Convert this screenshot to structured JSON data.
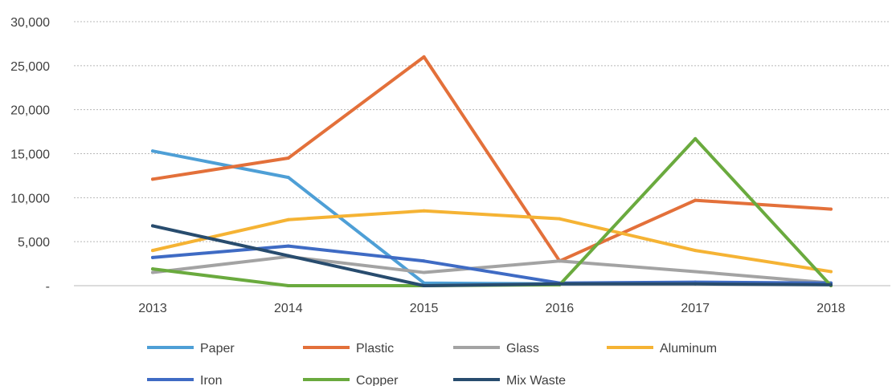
{
  "chart_data": {
    "type": "line",
    "title": "",
    "xlabel": "",
    "ylabel": "",
    "categories": [
      "2013",
      "2014",
      "2015",
      "2016",
      "2017",
      "2018"
    ],
    "ylim": [
      0,
      30000
    ],
    "y_ticks": [
      {
        "value": 0,
        "label": "-"
      },
      {
        "value": 5000,
        "label": "5,000"
      },
      {
        "value": 10000,
        "label": "10,000"
      },
      {
        "value": 15000,
        "label": "15,000"
      },
      {
        "value": 20000,
        "label": "20,000"
      },
      {
        "value": 25000,
        "label": "25,000"
      },
      {
        "value": 30000,
        "label": "30,000"
      }
    ],
    "grid": "horizontal dotted",
    "legend_position": "bottom",
    "series": [
      {
        "name": "Paper",
        "color": "#4e9fd6",
        "values": [
          15300,
          12300,
          300,
          200,
          300,
          200
        ]
      },
      {
        "name": "Plastic",
        "color": "#e3703a",
        "values": [
          12100,
          14500,
          26000,
          2800,
          9700,
          8700
        ]
      },
      {
        "name": "Glass",
        "color": "#a3a3a3",
        "values": [
          1500,
          3300,
          1500,
          2800,
          1600,
          300
        ]
      },
      {
        "name": "Aluminum",
        "color": "#f5b334",
        "values": [
          4000,
          7500,
          8500,
          7600,
          4000,
          1600
        ]
      },
      {
        "name": "Iron",
        "color": "#3f6bc4",
        "values": [
          3200,
          4500,
          2800,
          300,
          400,
          300
        ]
      },
      {
        "name": "Copper",
        "color": "#6aaa3e",
        "values": [
          1900,
          0,
          0,
          100,
          16700,
          0
        ]
      },
      {
        "name": "Mix Waste",
        "color": "#284c6e",
        "values": [
          6800,
          3400,
          0,
          200,
          200,
          100
        ]
      }
    ]
  }
}
